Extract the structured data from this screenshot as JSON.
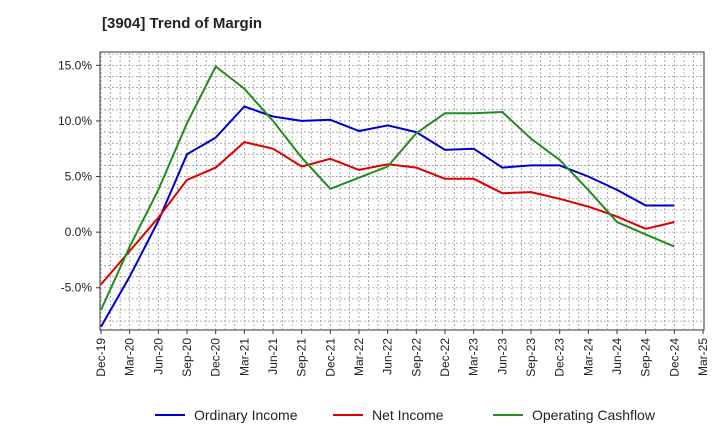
{
  "chart_data": {
    "type": "line",
    "title": "[3904]  Trend of Margin",
    "xlabel": "",
    "ylabel": "",
    "x": [
      "Dec-19",
      "Mar-20",
      "Jun-20",
      "Sep-20",
      "Dec-20",
      "Mar-21",
      "Jun-21",
      "Sep-21",
      "Dec-21",
      "Mar-22",
      "Jun-22",
      "Sep-22",
      "Dec-22",
      "Mar-23",
      "Jun-23",
      "Sep-23",
      "Dec-23",
      "Mar-24",
      "Jun-24",
      "Sep-24",
      "Dec-24",
      "Mar-25"
    ],
    "ylim": [
      -8.8,
      16.2
    ],
    "yticks": [
      15.0,
      10.0,
      5.0,
      0.0,
      -5.0
    ],
    "ytick_labels": [
      "15.0%",
      "10.0%",
      "5.0%",
      "0.0%",
      "-5.0%"
    ],
    "grid": true,
    "legend_position": "bottom",
    "series": [
      {
        "name": "Ordinary Income",
        "color": "#0000cc",
        "values": [
          -8.5,
          -4.0,
          1.0,
          7.0,
          8.5,
          11.3,
          10.4,
          10.0,
          10.1,
          9.1,
          9.6,
          9.0,
          7.4,
          7.5,
          5.8,
          6.0,
          6.0,
          5.0,
          3.8,
          2.4,
          2.4,
          null
        ]
      },
      {
        "name": "Net Income",
        "color": "#dd0000",
        "values": [
          -4.7,
          -1.7,
          1.3,
          4.7,
          5.8,
          8.1,
          7.5,
          5.9,
          6.6,
          5.6,
          6.1,
          5.8,
          4.8,
          4.8,
          3.5,
          3.6,
          3.0,
          2.3,
          1.4,
          0.3,
          0.9,
          null
        ]
      },
      {
        "name": "Operating Cashflow",
        "color": "#228b22",
        "values": [
          -7.0,
          -1.3,
          3.8,
          9.8,
          14.9,
          12.9,
          10.0,
          6.7,
          3.9,
          4.9,
          5.9,
          8.9,
          10.7,
          10.7,
          10.8,
          8.4,
          6.5,
          3.8,
          0.9,
          -0.2,
          -1.3,
          null
        ]
      }
    ]
  }
}
